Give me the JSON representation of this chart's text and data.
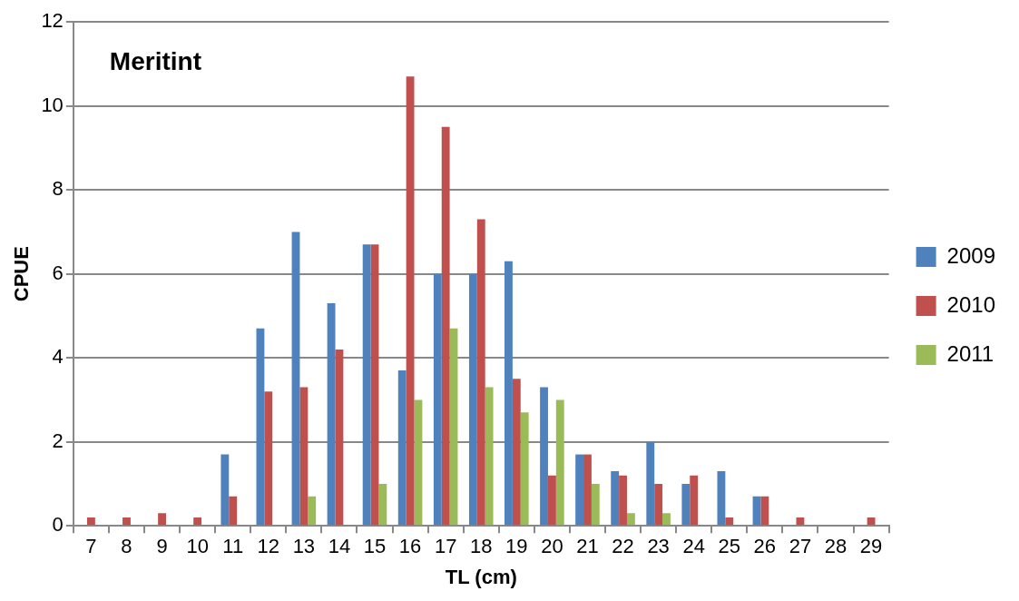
{
  "chart_data": {
    "type": "bar",
    "title": "Meritint",
    "xlabel": "TL (cm)",
    "ylabel": "CPUE",
    "categories": [
      "7",
      "8",
      "9",
      "10",
      "11",
      "12",
      "13",
      "14",
      "15",
      "16",
      "17",
      "18",
      "19",
      "20",
      "21",
      "22",
      "23",
      "24",
      "25",
      "26",
      "27",
      "28",
      "29"
    ],
    "series": [
      {
        "name": "2009",
        "color": "#4f81bd",
        "values": [
          0,
          0,
          0,
          0,
          1.7,
          4.7,
          7,
          5.3,
          6.7,
          3.7,
          6,
          6,
          6.3,
          3.3,
          1.7,
          1.3,
          2,
          1,
          1.3,
          0.7,
          0,
          0,
          0
        ]
      },
      {
        "name": "2010",
        "color": "#c0504d",
        "values": [
          0.2,
          0.2,
          0.3,
          0.2,
          0.7,
          3.2,
          3.3,
          4.2,
          6.7,
          10.7,
          9.5,
          7.3,
          3.5,
          1.2,
          1.7,
          1.2,
          1,
          1.2,
          0.2,
          0.7,
          0.2,
          0,
          0.2
        ]
      },
      {
        "name": "2011",
        "color": "#9bbb59",
        "values": [
          0,
          0,
          0,
          0,
          0,
          0,
          0.7,
          0,
          1,
          3,
          4.7,
          3.3,
          2.7,
          3,
          1,
          0.3,
          0.3,
          0,
          0,
          0,
          0,
          0,
          0
        ]
      }
    ],
    "ylim": [
      0,
      12
    ],
    "yticks": [
      0,
      2,
      4,
      6,
      8,
      10,
      12
    ],
    "grid": "y",
    "legend": "right"
  }
}
